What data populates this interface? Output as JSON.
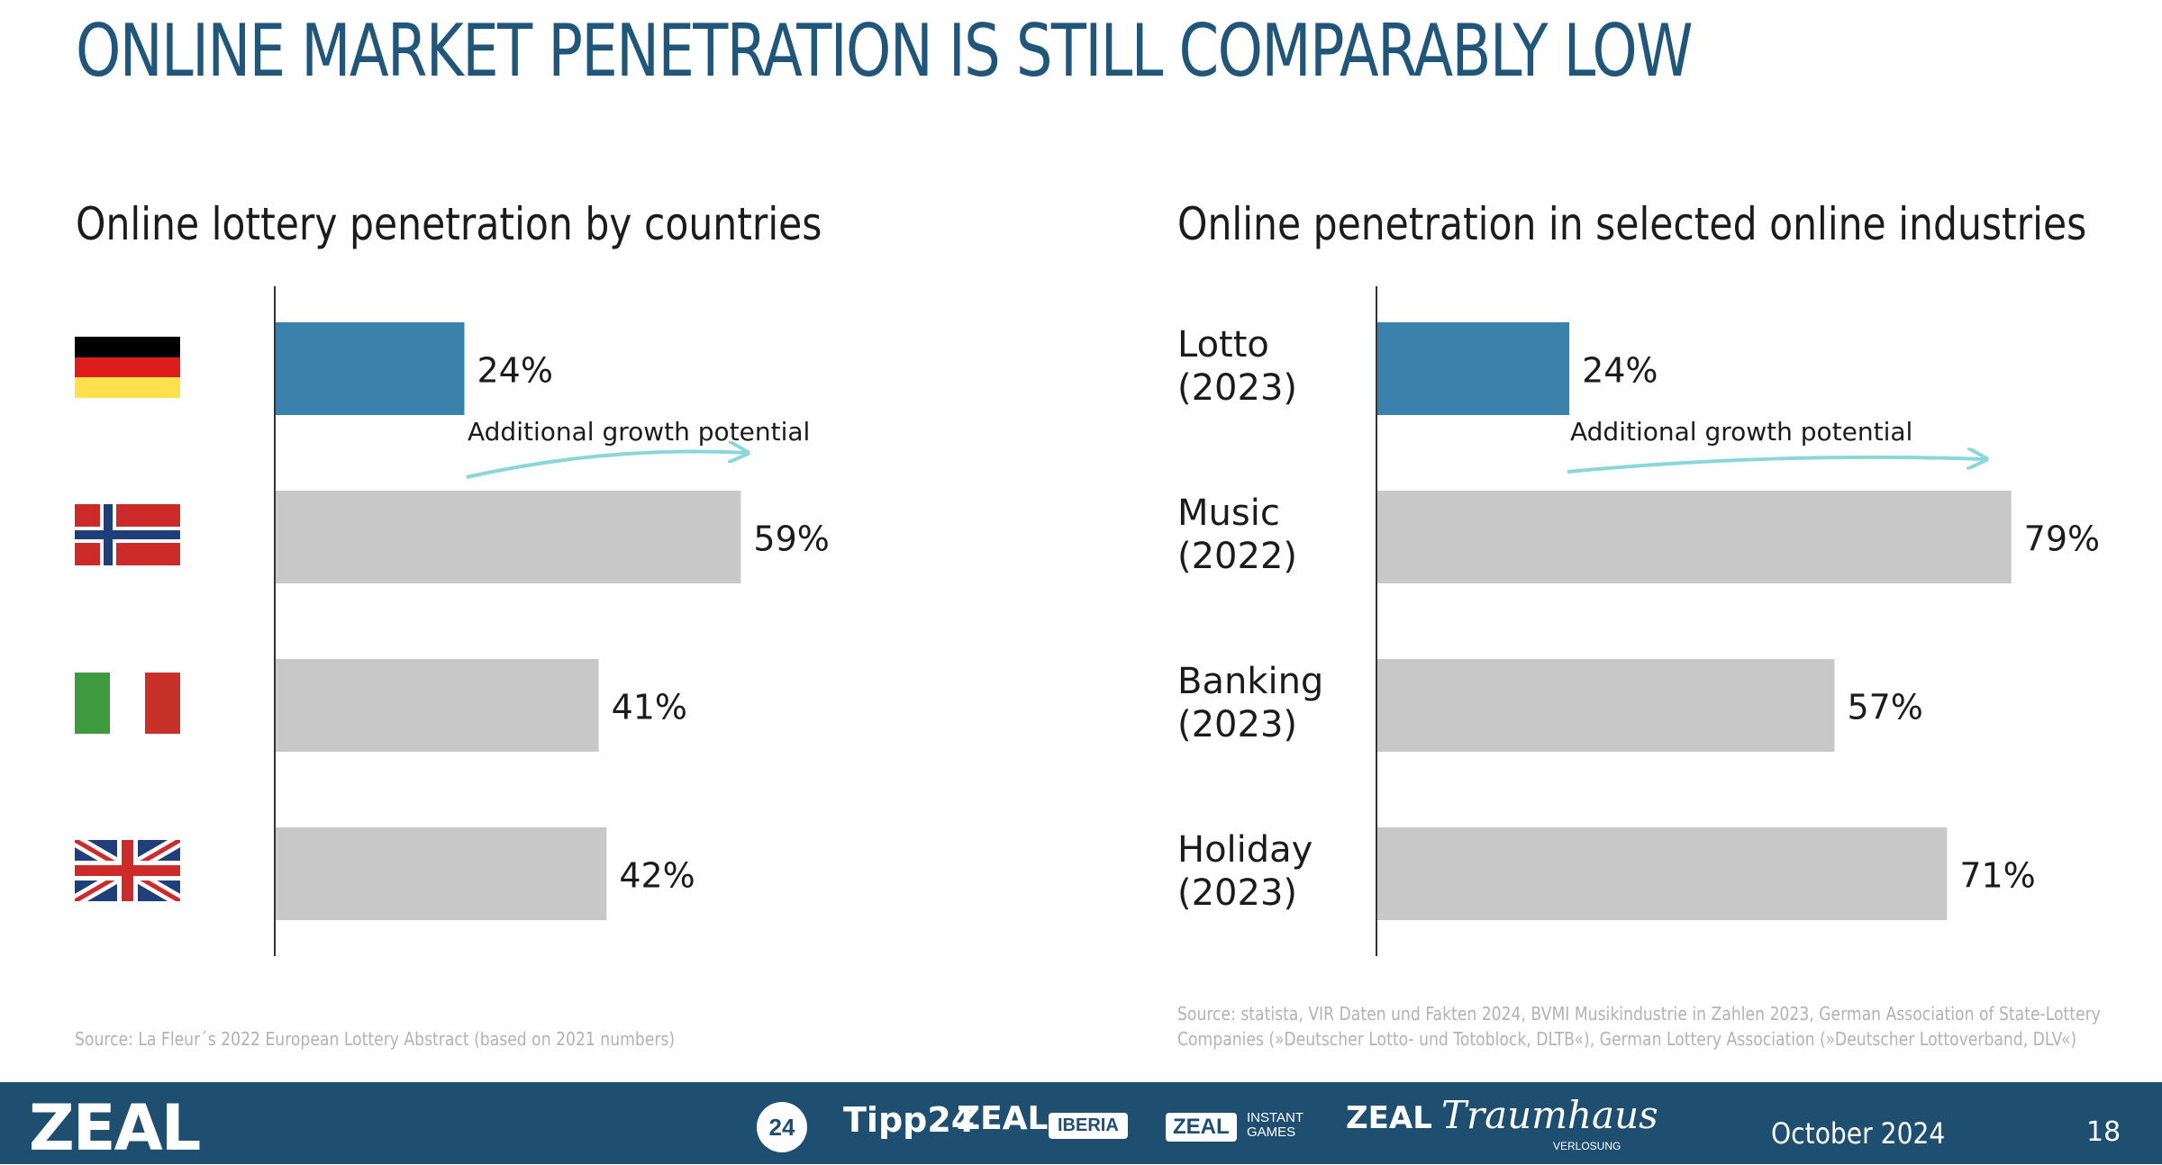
{
  "title": "ONLINE MARKET PENETRATION IS STILL COMPARABLY LOW",
  "colors": {
    "title": "#1f5679",
    "highlight_bar": "#3a81ab",
    "neutral_bar": "#c8c8c8",
    "growth_arrow": "#8ad6d8",
    "footer": "#1e4e70"
  },
  "chart_data": [
    {
      "type": "bar",
      "orientation": "horizontal",
      "title": "Online lottery penetration by countries",
      "categories": [
        "Germany",
        "Norway",
        "Italy",
        "United Kingdom"
      ],
      "category_icons": [
        "germany-flag-icon",
        "norway-flag-icon",
        "italy-flag-icon",
        "uk-flag-icon"
      ],
      "values": [
        24,
        59,
        41,
        42
      ],
      "value_labels": [
        "24%",
        "59%",
        "41%",
        "42%"
      ],
      "highlight_index": 0,
      "xlim": [
        0,
        100
      ],
      "annotation": "Additional growth potential",
      "grid": false,
      "source": "Source: La Fleur´s 2022 European Lottery Abstract (based on 2021 numbers)"
    },
    {
      "type": "bar",
      "orientation": "horizontal",
      "title": "Online penetration in selected online industries",
      "categories": [
        [
          "Lotto",
          "(2023)"
        ],
        [
          "Music",
          "(2022)"
        ],
        [
          "Banking",
          "(2023)"
        ],
        [
          "Holiday",
          "(2023)"
        ]
      ],
      "values": [
        24,
        79,
        57,
        71
      ],
      "value_labels": [
        "24%",
        "79%",
        "57%",
        "71%"
      ],
      "highlight_index": 0,
      "xlim": [
        0,
        100
      ],
      "annotation": "Additional growth potential",
      "grid": false,
      "source": [
        "Source: statista, VIR Daten und Fakten 2024, BVMI Musikindustrie in Zahlen 2023, German Association of State-Lottery",
        "Companies (»Deutscher Lotto- und Totoblock, DLTB«), German Lottery Association (»Deutscher Lottoverband, DLV«)"
      ]
    }
  ],
  "footer": {
    "brand": "ZEAL",
    "logos": {
      "lotto24": "24",
      "tipp24": "Tipp24",
      "zeal_iberia_word": "ZEAL",
      "zeal_iberia_box": "IBERIA",
      "zeal_instant_box": "ZEAL",
      "zeal_instant_line1": "INSTANT",
      "zeal_instant_line2": "GAMES",
      "zeal_traumhaus_word": "ZEAL",
      "traumhaus": "Traumhaus",
      "traumhaus_sub": "VERLOSUNG"
    },
    "date": "October 2024",
    "page": "18"
  }
}
